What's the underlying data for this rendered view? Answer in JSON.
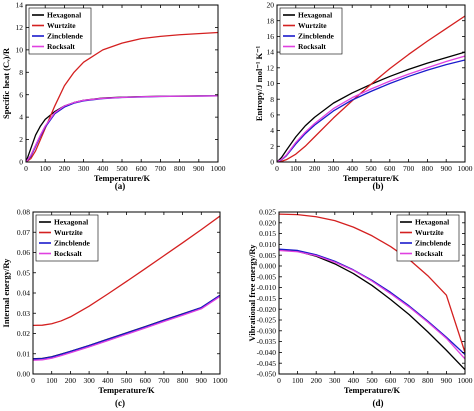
{
  "chart_data": [
    {
      "type": "line",
      "panel": "(a)",
      "xlabel": "Temperature/K",
      "ylabel": "Specific heat (Cᵥ)/R",
      "xlim": [
        0,
        1000
      ],
      "ylim": [
        0,
        14
      ],
      "xticks": [
        0,
        100,
        200,
        300,
        400,
        500,
        600,
        700,
        800,
        900,
        1000
      ],
      "yticks": [
        0,
        2,
        4,
        6,
        8,
        10,
        12,
        14
      ],
      "legend_position": "top-left",
      "x": [
        0,
        25,
        50,
        75,
        100,
        150,
        200,
        250,
        300,
        400,
        500,
        600,
        700,
        800,
        900,
        1000
      ],
      "series": [
        {
          "name": "Hexagonal",
          "color": "#000000",
          "values": [
            0,
            1.2,
            2.4,
            3.2,
            3.8,
            4.5,
            5.0,
            5.3,
            5.5,
            5.7,
            5.78,
            5.83,
            5.86,
            5.88,
            5.9,
            5.9
          ]
        },
        {
          "name": "Wurtzite",
          "color": "#d42020",
          "values": [
            0,
            0.3,
            1.0,
            2.0,
            3.0,
            5.0,
            6.8,
            8.0,
            8.9,
            10.0,
            10.6,
            11.0,
            11.2,
            11.35,
            11.45,
            11.55
          ]
        },
        {
          "name": "Zincblende",
          "color": "#1a1acc",
          "values": [
            0,
            0.5,
            1.4,
            2.3,
            3.1,
            4.3,
            4.9,
            5.25,
            5.45,
            5.65,
            5.75,
            5.8,
            5.84,
            5.86,
            5.88,
            5.9
          ]
        },
        {
          "name": "Rocksalt",
          "color": "#e040e0",
          "values": [
            0,
            0.6,
            1.5,
            2.4,
            3.2,
            4.4,
            5.0,
            5.3,
            5.5,
            5.68,
            5.76,
            5.82,
            5.85,
            5.87,
            5.88,
            5.9
          ]
        }
      ]
    },
    {
      "type": "line",
      "panel": "(b)",
      "xlabel": "Temperature/K",
      "ylabel": "Entropy/J mol⁻¹ K⁻¹",
      "xlim": [
        0,
        1000
      ],
      "ylim": [
        0,
        20
      ],
      "xticks": [
        0,
        100,
        200,
        300,
        400,
        500,
        600,
        700,
        800,
        900,
        1000
      ],
      "yticks": [
        0,
        2,
        4,
        6,
        8,
        10,
        12,
        14,
        16,
        18,
        20
      ],
      "legend_position": "top-left",
      "x": [
        0,
        25,
        50,
        100,
        150,
        200,
        300,
        400,
        500,
        600,
        700,
        800,
        900,
        1000
      ],
      "series": [
        {
          "name": "Hexagonal",
          "color": "#000000",
          "values": [
            0,
            0.6,
            1.5,
            3.2,
            4.6,
            5.7,
            7.5,
            8.8,
            9.9,
            10.9,
            11.8,
            12.6,
            13.3,
            14.0
          ]
        },
        {
          "name": "Wurtzite",
          "color": "#d42020",
          "values": [
            0,
            0.1,
            0.3,
            1.0,
            2.0,
            3.2,
            5.6,
            7.8,
            9.9,
            11.9,
            13.7,
            15.4,
            17.0,
            18.6
          ]
        },
        {
          "name": "Zincblende",
          "color": "#1a1acc",
          "values": [
            0,
            0.3,
            0.8,
            2.3,
            3.6,
            4.7,
            6.5,
            7.9,
            9.0,
            10.0,
            10.9,
            11.7,
            12.4,
            13.0
          ]
        },
        {
          "name": "Rocksalt",
          "color": "#e040e0",
          "values": [
            0,
            0.35,
            0.9,
            2.5,
            3.8,
            4.9,
            6.8,
            8.2,
            9.3,
            10.3,
            11.2,
            12.0,
            12.8,
            13.5
          ]
        }
      ]
    },
    {
      "type": "line",
      "panel": "(c)",
      "xlabel": "Temperature/K",
      "ylabel": "Internal energy/Ry",
      "xlim": [
        0,
        1000
      ],
      "ylim": [
        0.0,
        0.08
      ],
      "xticks": [
        0,
        100,
        200,
        300,
        400,
        500,
        600,
        700,
        800,
        900,
        1000
      ],
      "yticks": [
        0.0,
        0.01,
        0.02,
        0.03,
        0.04,
        0.05,
        0.06,
        0.07,
        0.08
      ],
      "legend_position": "top-left",
      "x": [
        0,
        50,
        100,
        150,
        200,
        300,
        400,
        500,
        600,
        700,
        800,
        900,
        1000
      ],
      "series": [
        {
          "name": "Hexagonal",
          "color": "#000000",
          "values": [
            0.0075,
            0.0077,
            0.0085,
            0.0098,
            0.0112,
            0.0141,
            0.0172,
            0.0203,
            0.0234,
            0.0266,
            0.0297,
            0.0328,
            0.0389
          ]
        },
        {
          "name": "Wurtzite",
          "color": "#d42020",
          "values": [
            0.024,
            0.0241,
            0.0248,
            0.0262,
            0.0282,
            0.0335,
            0.0395,
            0.0457,
            0.052,
            0.0584,
            0.0648,
            0.0713,
            0.078
          ]
        },
        {
          "name": "Zincblende",
          "color": "#1a1acc",
          "values": [
            0.0074,
            0.0076,
            0.0084,
            0.0097,
            0.0111,
            0.014,
            0.0171,
            0.0202,
            0.0233,
            0.0265,
            0.0296,
            0.0328,
            0.0389
          ]
        },
        {
          "name": "Rocksalt",
          "color": "#e040e0",
          "values": [
            0.0068,
            0.007,
            0.0078,
            0.0091,
            0.0105,
            0.0134,
            0.0165,
            0.0196,
            0.0227,
            0.0259,
            0.029,
            0.0322,
            0.0383
          ]
        }
      ]
    },
    {
      "type": "line",
      "panel": "(d)",
      "xlabel": "Temperature/K",
      "ylabel": "Vibrational free energy/Ry",
      "xlim": [
        0,
        1000
      ],
      "ylim": [
        -0.05,
        0.025
      ],
      "xticks": [
        0,
        100,
        200,
        300,
        400,
        500,
        600,
        700,
        800,
        900,
        1000
      ],
      "yticks": [
        -0.05,
        -0.045,
        -0.04,
        -0.035,
        -0.03,
        -0.025,
        -0.02,
        -0.015,
        -0.01,
        -0.005,
        0.0,
        0.005,
        0.01,
        0.015,
        0.02,
        0.025
      ],
      "legend_position": "top-right",
      "x": [
        0,
        100,
        200,
        300,
        400,
        500,
        600,
        700,
        800,
        900,
        1000
      ],
      "series": [
        {
          "name": "Hexagonal",
          "color": "#000000",
          "values": [
            0.0075,
            0.0068,
            0.0045,
            0.001,
            -0.0035,
            -0.009,
            -0.0155,
            -0.0225,
            -0.0305,
            -0.039,
            -0.048
          ]
        },
        {
          "name": "Wurtzite",
          "color": "#d42020",
          "values": [
            0.024,
            0.0238,
            0.0228,
            0.021,
            0.018,
            0.014,
            0.009,
            0.003,
            -0.0045,
            -0.0135,
            -0.04
          ]
        },
        {
          "name": "Zincblende",
          "color": "#1a1acc",
          "values": [
            0.0078,
            0.0072,
            0.0052,
            0.0022,
            -0.0018,
            -0.0066,
            -0.0122,
            -0.0185,
            -0.0255,
            -0.033,
            -0.041
          ]
        },
        {
          "name": "Rocksalt",
          "color": "#e040e0",
          "values": [
            0.0072,
            0.0066,
            0.0048,
            0.0018,
            -0.002,
            -0.007,
            -0.0128,
            -0.019,
            -0.026,
            -0.0335,
            -0.043
          ]
        }
      ]
    }
  ]
}
